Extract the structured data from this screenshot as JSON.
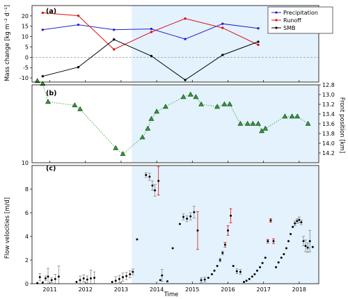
{
  "chart_data": [
    {
      "panel": "(a)",
      "type": "line",
      "ylabel": "Mass change [kg m⁻² d⁻¹]",
      "ylim": [
        -12,
        25
      ],
      "yticks": [
        -10,
        -5,
        0,
        5,
        10,
        15,
        20
      ],
      "legend": "top-right",
      "zero_line": "dashed",
      "series": [
        {
          "name": "Precipitation",
          "color": "#2222cc",
          "x": [
            2010.8,
            2011.8,
            2012.8,
            2013.85,
            2014.8,
            2015.85,
            2016.85
          ],
          "y": [
            13.3,
            15.7,
            13.3,
            13.7,
            8.8,
            16.2,
            14.0
          ]
        },
        {
          "name": "Runoff",
          "color": "#dd1111",
          "x": [
            2010.8,
            2011.8,
            2012.8,
            2013.85,
            2014.8,
            2015.85,
            2016.85
          ],
          "y": [
            21.5,
            20.1,
            3.8,
            12.2,
            18.7,
            14.2,
            6.0
          ]
        },
        {
          "name": "SMB",
          "color": "#000000",
          "x": [
            2010.8,
            2011.8,
            2012.8,
            2013.85,
            2014.8,
            2015.85,
            2016.85
          ],
          "y": [
            -9.2,
            -4.8,
            8.6,
            0.6,
            -11.0,
            1.1,
            7.5
          ]
        }
      ]
    },
    {
      "panel": "(b)",
      "type": "line",
      "ylabel": "Front position [km]",
      "ylim": [
        14.4,
        12.8
      ],
      "yticks": [
        12.8,
        13.0,
        13.2,
        13.4,
        13.6,
        13.8,
        14.0,
        14.2
      ],
      "left_ytick": "10",
      "color": "#339933",
      "x": [
        2010.65,
        2010.8,
        2010.95,
        2011.7,
        2011.85,
        2012.85,
        2013.05,
        2013.6,
        2013.75,
        2013.85,
        2014.0,
        2014.25,
        2014.75,
        2014.95,
        2015.1,
        2015.25,
        2015.7,
        2015.9,
        2016.05,
        2016.35,
        2016.55,
        2016.7,
        2016.85,
        2016.95,
        2017.05,
        2017.6,
        2017.8,
        2017.95,
        2018.25
      ],
      "y": [
        12.72,
        12.78,
        13.15,
        13.22,
        13.3,
        14.1,
        14.22,
        13.88,
        13.7,
        13.5,
        13.35,
        13.25,
        13.05,
        13.0,
        13.05,
        13.2,
        13.25,
        13.2,
        13.2,
        13.6,
        13.6,
        13.6,
        13.6,
        13.75,
        13.7,
        13.45,
        13.45,
        13.45,
        13.6
      ]
    },
    {
      "panel": "(c)",
      "type": "scatter",
      "xlabel": "Time",
      "ylabel": "Flow velocities [m/d]",
      "ylim": [
        0,
        10
      ],
      "yticks": [
        0,
        2,
        4,
        6,
        8
      ],
      "xlim": [
        2010.5,
        2018.55
      ],
      "xticks": [
        2011,
        2012,
        2013,
        2014,
        2015,
        2016,
        2017,
        2018
      ],
      "x_labels": [
        "2011",
        "2012",
        "2013",
        "2014",
        "2015",
        "2016",
        "2017",
        "2018"
      ],
      "shaded_from": 2013.3,
      "shade_color": "#e3f2fd",
      "points": [
        {
          "x": 2010.65,
          "y": 0.05
        },
        {
          "x": 2010.72,
          "y": 0.55,
          "e": 0.3
        },
        {
          "x": 2010.8,
          "y": 0.1
        },
        {
          "x": 2010.88,
          "y": 0.45,
          "e": 0.2
        },
        {
          "x": 2010.95,
          "y": 0.6,
          "e": 0.7
        },
        {
          "x": 2011.05,
          "y": 0.3,
          "e": 0.2
        },
        {
          "x": 2011.15,
          "y": 0.4,
          "e": 0.4
        },
        {
          "x": 2011.25,
          "y": 0.6,
          "e": 0.9
        },
        {
          "x": 2011.75,
          "y": 0.15
        },
        {
          "x": 2011.85,
          "y": 0.3,
          "e": 0.35
        },
        {
          "x": 2011.95,
          "y": 0.45,
          "e": 0.3
        },
        {
          "x": 2012.05,
          "y": 0.35,
          "e": 0.3
        },
        {
          "x": 2012.15,
          "y": 0.45,
          "e": 0.7
        },
        {
          "x": 2012.25,
          "y": 0.5,
          "e": 0.5
        },
        {
          "x": 2012.75,
          "y": 0.15
        },
        {
          "x": 2012.85,
          "y": 0.25,
          "e": 0.35
        },
        {
          "x": 2012.95,
          "y": 0.4,
          "e": 0.3
        },
        {
          "x": 2013.05,
          "y": 0.55,
          "e": 0.35
        },
        {
          "x": 2013.15,
          "y": 0.65,
          "e": 0.3
        },
        {
          "x": 2013.25,
          "y": 0.8,
          "e": 0.3
        },
        {
          "x": 2013.33,
          "y": 1.0,
          "e": 0.25
        },
        {
          "x": 2013.45,
          "y": 3.75
        },
        {
          "x": 2013.7,
          "y": 9.2,
          "e": 0.2
        },
        {
          "x": 2013.8,
          "y": 9.05,
          "e": 0.3
        },
        {
          "x": 2013.88,
          "y": 8.3,
          "e": 0.4
        },
        {
          "x": 2013.95,
          "y": 7.9,
          "e": 0.5
        },
        {
          "x": 2014.05,
          "y": 8.7,
          "e": 1.2,
          "ec": "#dd1111"
        },
        {
          "x": 2014.1,
          "y": 0.3
        },
        {
          "x": 2014.15,
          "y": 0.7,
          "e": 0.5
        },
        {
          "x": 2014.3,
          "y": 0.2
        },
        {
          "x": 2014.45,
          "y": 3.0
        },
        {
          "x": 2014.65,
          "y": 5.05
        },
        {
          "x": 2014.75,
          "y": 5.65,
          "e": 0.25
        },
        {
          "x": 2014.85,
          "y": 5.5,
          "e": 0.25
        },
        {
          "x": 2014.95,
          "y": 5.7,
          "e": 0.3
        },
        {
          "x": 2015.05,
          "y": 6.05,
          "e": 0.5
        },
        {
          "x": 2015.15,
          "y": 4.5,
          "e": 1.6,
          "ec": "#dd1111"
        },
        {
          "x": 2015.25,
          "y": 0.3,
          "e": 0.2
        },
        {
          "x": 2015.35,
          "y": 0.35,
          "e": 0.2
        },
        {
          "x": 2015.45,
          "y": 0.5
        },
        {
          "x": 2015.55,
          "y": 0.8
        },
        {
          "x": 2015.62,
          "y": 1.1
        },
        {
          "x": 2015.7,
          "y": 1.5
        },
        {
          "x": 2015.78,
          "y": 2.0,
          "e": 0.15
        },
        {
          "x": 2015.85,
          "y": 2.6,
          "e": 0.15
        },
        {
          "x": 2015.92,
          "y": 3.3,
          "e": 0.2,
          "ec": "#dd1111"
        },
        {
          "x": 2016.0,
          "y": 4.5,
          "e": 0.4,
          "ec": "#dd1111"
        },
        {
          "x": 2016.08,
          "y": 5.75,
          "e": 0.6,
          "ec": "#dd1111"
        },
        {
          "x": 2016.15,
          "y": 1.5
        },
        {
          "x": 2016.25,
          "y": 1.05,
          "e": 0.2
        },
        {
          "x": 2016.35,
          "y": 1.0,
          "e": 0.2
        },
        {
          "x": 2016.45,
          "y": 0.15
        },
        {
          "x": 2016.52,
          "y": 0.25
        },
        {
          "x": 2016.6,
          "y": 0.4
        },
        {
          "x": 2016.68,
          "y": 0.6
        },
        {
          "x": 2016.75,
          "y": 0.8
        },
        {
          "x": 2016.82,
          "y": 1.1
        },
        {
          "x": 2016.9,
          "y": 1.4
        },
        {
          "x": 2016.97,
          "y": 1.75
        },
        {
          "x": 2017.05,
          "y": 2.2
        },
        {
          "x": 2017.12,
          "y": 3.6,
          "e": 0.15,
          "ec": "#dd1111"
        },
        {
          "x": 2017.2,
          "y": 5.35,
          "e": 0.15,
          "ec": "#dd1111"
        },
        {
          "x": 2017.28,
          "y": 3.6,
          "e": 0.2,
          "ec": "#dd1111"
        },
        {
          "x": 2017.35,
          "y": 1.4
        },
        {
          "x": 2017.42,
          "y": 1.8
        },
        {
          "x": 2017.5,
          "y": 2.2
        },
        {
          "x": 2017.57,
          "y": 2.5
        },
        {
          "x": 2017.64,
          "y": 3.0
        },
        {
          "x": 2017.7,
          "y": 3.6
        },
        {
          "x": 2017.76,
          "y": 4.2
        },
        {
          "x": 2017.82,
          "y": 4.8
        },
        {
          "x": 2017.88,
          "y": 5.1,
          "e": 0.2
        },
        {
          "x": 2017.94,
          "y": 5.3,
          "e": 0.2
        },
        {
          "x": 2018.0,
          "y": 5.4,
          "e": 0.25
        },
        {
          "x": 2018.06,
          "y": 5.2,
          "e": 0.2
        },
        {
          "x": 2018.12,
          "y": 3.6,
          "e": 0.4
        },
        {
          "x": 2018.18,
          "y": 3.2,
          "e": 0.5
        },
        {
          "x": 2018.24,
          "y": 3.05,
          "e": 0.4
        },
        {
          "x": 2018.3,
          "y": 3.6,
          "e": 0.9
        },
        {
          "x": 2018.38,
          "y": 3.1
        }
      ]
    }
  ]
}
